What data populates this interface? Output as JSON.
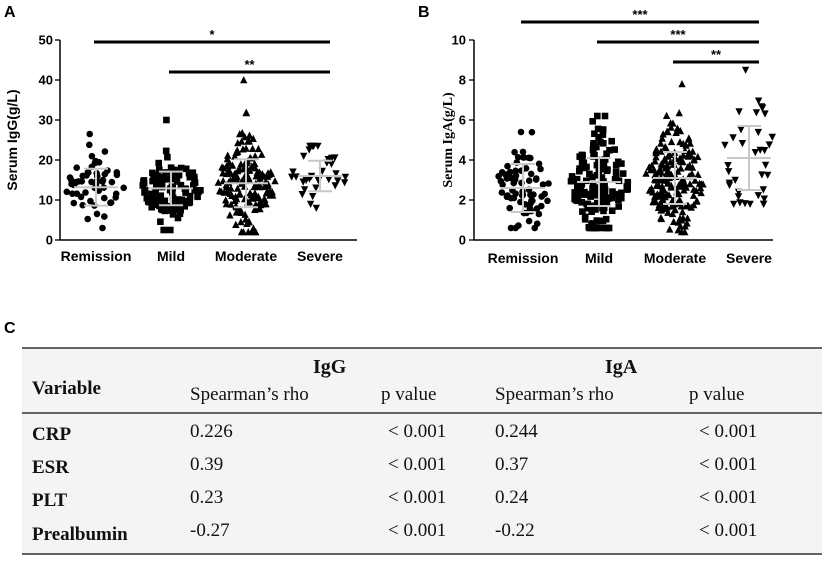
{
  "colors": {
    "ink": "#000000",
    "mean_line": "#c8c8c8",
    "table_bg": "#f4f4f4",
    "table_rule": "#333333"
  },
  "panel_labels": {
    "a": "A",
    "b": "B",
    "c": "C"
  },
  "chart_data": [
    {
      "type": "scatter",
      "title": "",
      "ylabel": "Serum IgG(g/L)",
      "ylim": [
        0,
        50
      ],
      "yticks": [
        0,
        10,
        20,
        30,
        40,
        50
      ],
      "categories": [
        "Remission",
        "Mild",
        "Moderate",
        "Severe"
      ],
      "markers": [
        "circle",
        "square",
        "triangle-up",
        "triangle-down"
      ],
      "groups": [
        {
          "name": "Remission",
          "n": 55,
          "mean": 13.2,
          "sd": 4.6,
          "min": 3.0,
          "max": 26.5
        },
        {
          "name": "Mild",
          "n": 110,
          "mean": 12.9,
          "sd": 4.2,
          "min": 2.5,
          "max": 30.0
        },
        {
          "name": "Moderate",
          "n": 160,
          "mean": 14.2,
          "sd": 6.0,
          "min": 2.0,
          "max": 40.0
        },
        {
          "name": "Severe",
          "n": 32,
          "mean": 16.0,
          "sd": 3.8,
          "min": 8.0,
          "max": 23.5
        }
      ],
      "significance": [
        {
          "from": "Remission",
          "to": "Severe",
          "label": "*"
        },
        {
          "from": "Mild",
          "to": "Severe",
          "label": "**"
        }
      ]
    },
    {
      "type": "scatter",
      "title": "",
      "ylabel": "Serum IgA(g/L)",
      "ylim": [
        0,
        10
      ],
      "yticks": [
        0,
        2,
        4,
        6,
        8,
        10
      ],
      "categories": [
        "Remission",
        "Mild",
        "Moderate",
        "Severe"
      ],
      "markers": [
        "circle",
        "square",
        "triangle-up",
        "triangle-down"
      ],
      "groups": [
        {
          "name": "Remission",
          "n": 70,
          "mean": 2.6,
          "sd": 1.2,
          "min": 0.6,
          "max": 5.4
        },
        {
          "name": "Mild",
          "n": 150,
          "mean": 2.9,
          "sd": 1.2,
          "min": 0.6,
          "max": 6.2
        },
        {
          "name": "Moderate",
          "n": 190,
          "mean": 3.1,
          "sd": 1.3,
          "min": 0.4,
          "max": 7.8
        },
        {
          "name": "Severe",
          "n": 36,
          "mean": 4.1,
          "sd": 1.6,
          "min": 1.8,
          "max": 8.5
        }
      ],
      "significance": [
        {
          "from": "Remission",
          "to": "Severe",
          "label": "***"
        },
        {
          "from": "Mild",
          "to": "Severe",
          "label": "***"
        },
        {
          "from": "Moderate",
          "to": "Severe",
          "label": "**"
        }
      ]
    }
  ],
  "table": {
    "variable_header": "Variable",
    "groups": [
      "IgG",
      "IgA"
    ],
    "subheaders": [
      "Spearman’s rho",
      "p value",
      "Spearman’s rho",
      "p value"
    ],
    "rows": [
      {
        "variable": "CRP",
        "values": [
          "0.226",
          "< 0.001",
          "0.244",
          "< 0.001"
        ]
      },
      {
        "variable": "ESR",
        "values": [
          "0.39",
          "< 0.001",
          "0.37",
          "< 0.001"
        ]
      },
      {
        "variable": "PLT",
        "values": [
          "0.23",
          "< 0.001",
          "0.24",
          "< 0.001"
        ]
      },
      {
        "variable": "Prealbumin",
        "values": [
          "-0.27",
          "< 0.001",
          "-0.22",
          "< 0.001"
        ]
      }
    ]
  }
}
